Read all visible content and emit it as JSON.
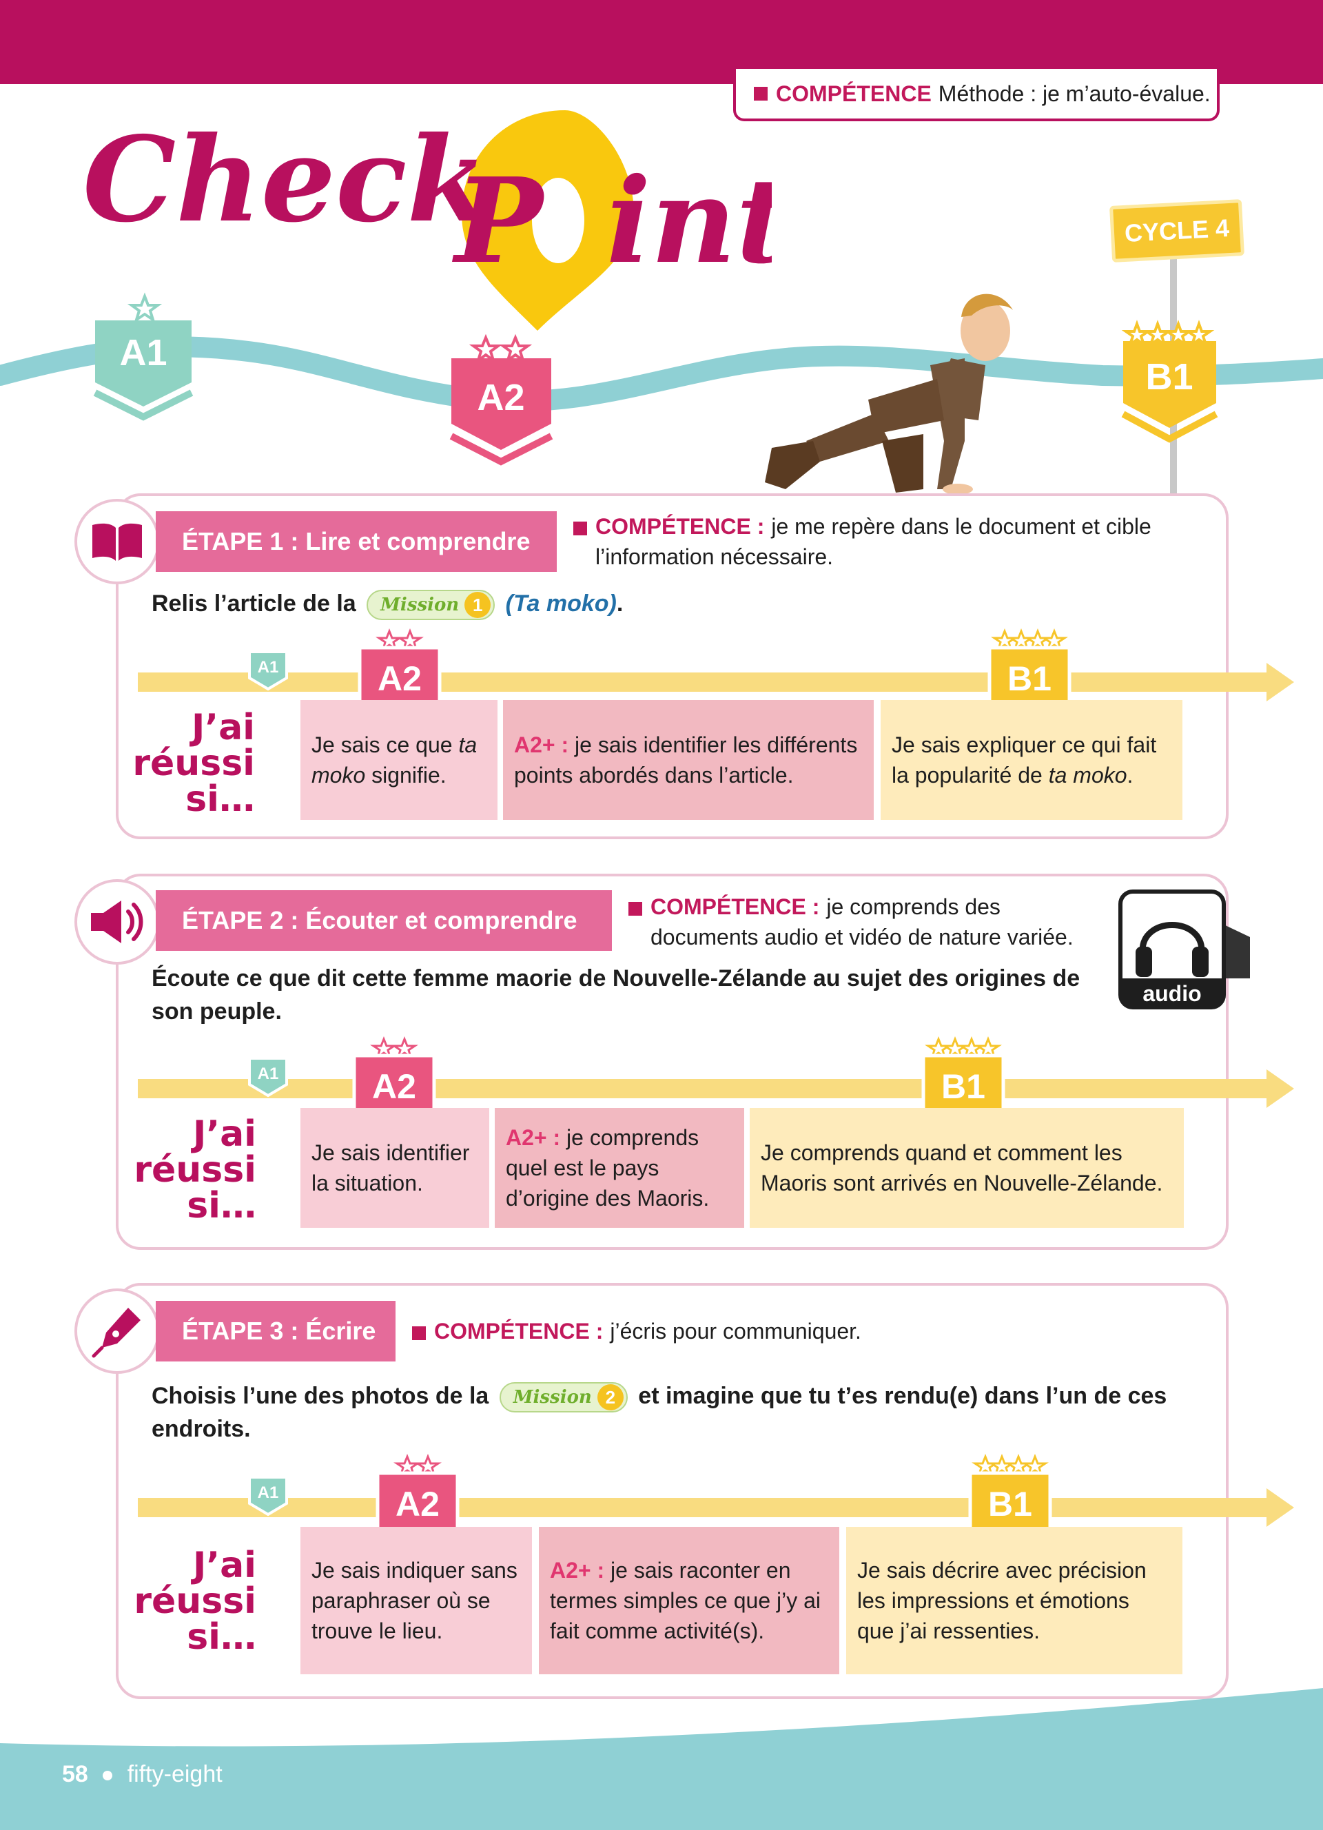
{
  "header": {
    "competence_keyword": "COMPÉTENCE",
    "competence_text": "Méthode : je m’auto-évalue."
  },
  "logo": {
    "text": "CheckPoint"
  },
  "cycle_sign": {
    "label": "CYCLE 4"
  },
  "path_levels": {
    "a1": "A1",
    "a2": "A2",
    "b1": "B1"
  },
  "levels": {
    "a1": "A1",
    "a2": "A2",
    "b1": "B1"
  },
  "reussi_label": {
    "line1": "J’ai",
    "line2": "réussi",
    "line3": "si…"
  },
  "etape1": {
    "title": "ÉTAPE 1 : Lire et comprendre",
    "competence_keyword": "COMPÉTENCE :",
    "competence_text_line1": "je me repère dans le document et cible",
    "competence_text_line2": "l’information nécessaire.",
    "instruction_before": "Relis l’article de la",
    "mission_word": "Mission",
    "mission_number": "1",
    "instruction_after": "(Ta moko)",
    "instruction_end": ".",
    "box_a2_part1": "Je sais ce que ",
    "box_a2_italic": "ta moko",
    "box_a2_part2": " signifie.",
    "box_a2plus_label": "A2+ :",
    "box_a2plus_text": "je sais identifier les différents points abordés dans l’article.",
    "box_b1_part1": "Je sais expliquer ce qui fait la popularité de ",
    "box_b1_italic": "ta moko",
    "box_b1_part2": "."
  },
  "etape2": {
    "title": "ÉTAPE 2 : Écouter et comprendre",
    "competence_keyword": "COMPÉTENCE :",
    "competence_text_line1": "je comprends des",
    "competence_text_line2": "documents audio et vidéo de nature variée.",
    "instruction": "Écoute ce que dit cette femme maorie de Nouvelle-Zélande au sujet des origines de son peuple.",
    "audio_label": "audio",
    "box_a2": "Je sais identifier la situation.",
    "box_a2plus_label": "A2+ :",
    "box_a2plus_text": "je comprends quel est le pays d’origine des Maoris.",
    "box_b1": "Je comprends quand et comment les Maoris sont arrivés en Nouvelle-Zélande."
  },
  "etape3": {
    "title": "ÉTAPE 3 : Écrire",
    "competence_keyword": "COMPÉTENCE :",
    "competence_text": "j’écris pour communiquer.",
    "instruction_before": "Choisis l’une des photos de la",
    "mission_word": "Mission",
    "mission_number": "2",
    "instruction_after": "et imagine que tu t’es rendu(e) dans l’un de ces endroits.",
    "box_a2": "Je sais indiquer sans paraphraser où se trouve le lieu.",
    "box_a2plus_label": "A2+ :",
    "box_a2plus_text": "je sais raconter en termes simples ce que j’y ai fait comme activité(s).",
    "box_b1": "Je sais décrire avec précision les impressions et émotions que j’ai ressenties."
  },
  "footer": {
    "page_number": "58",
    "page_words": "fifty-eight"
  },
  "colors": {
    "magenta": "#b8105e",
    "pink_band": "#e56b9a",
    "teal": "#8fd0d4",
    "a1_green": "#8fd3c3",
    "a2_pink": "#e9557f",
    "b1_yellow": "#f7c52a",
    "timeline": "#f9dc80"
  }
}
